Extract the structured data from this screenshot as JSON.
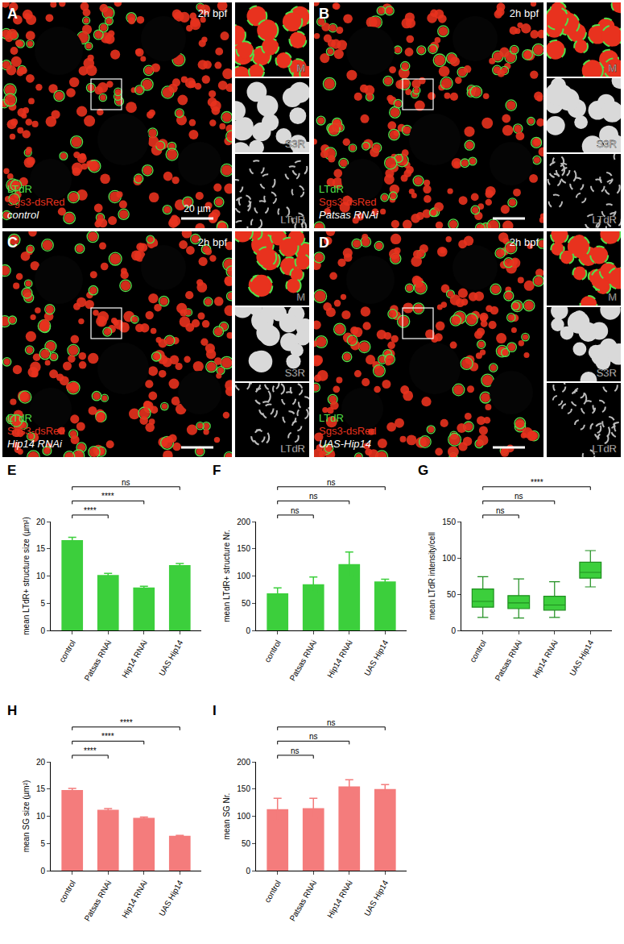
{
  "images": [
    {
      "panel": "A",
      "time": "2h bpf",
      "channels": [
        "LTdR",
        "Sgs3-dsRed"
      ],
      "genotype": "control",
      "insets": [
        "M",
        "S3R",
        "LTdR"
      ],
      "scale_bar": "20 µm"
    },
    {
      "panel": "B",
      "time": "2h bpf",
      "channels": [
        "LTdR",
        "Sgs3-dsRed"
      ],
      "genotype": "Patsas RNAi",
      "insets": [
        "M",
        "S3R",
        "LTdR"
      ]
    },
    {
      "panel": "C",
      "time": "2h bpf",
      "channels": [
        "LTdR",
        "Sgs3-dsRed"
      ],
      "genotype": "Hip14 RNAi",
      "insets": [
        "M",
        "S3R",
        "LTdR"
      ]
    },
    {
      "panel": "D",
      "time": "2h bpf",
      "channels": [
        "LTdR",
        "Sgs3-dsRed"
      ],
      "genotype": "UAS-Hip14",
      "insets": [
        "M",
        "S3R",
        "LTdR"
      ]
    }
  ],
  "chart_data": [
    {
      "panel_label": "E",
      "type": "bar",
      "y_label": "mean LTdR+ structure size (µm²)",
      "categories": [
        "control",
        "Patsas RNAi",
        "Hip14 RNAi",
        "UAS Hip14"
      ],
      "values": [
        16.6,
        10.2,
        7.9,
        12.0
      ],
      "errors": [
        0.5,
        0.3,
        0.2,
        0.3
      ],
      "color": "#3ccf3c",
      "ylim": [
        0,
        20
      ],
      "yticks": [
        0,
        5,
        10,
        15,
        20
      ],
      "comparisons": [
        {
          "from": "control",
          "to": "Patsas RNAi",
          "label": "****"
        },
        {
          "from": "control",
          "to": "Hip14 RNAi",
          "label": "****"
        },
        {
          "from": "control",
          "to": "UAS Hip14",
          "label": "ns"
        }
      ]
    },
    {
      "panel_label": "F",
      "type": "bar",
      "y_label": "mean LTdR+ structure Nr.",
      "categories": [
        "control",
        "Patsas RNAi",
        "Hip14 RNAi",
        "UAS Hip14"
      ],
      "values": [
        68,
        85,
        122,
        90
      ],
      "errors": [
        10,
        13,
        22,
        4
      ],
      "color": "#3ccf3c",
      "ylim": [
        0,
        200
      ],
      "yticks": [
        0,
        50,
        100,
        150,
        200
      ],
      "comparisons": [
        {
          "from": "control",
          "to": "Patsas RNAi",
          "label": "ns"
        },
        {
          "from": "control",
          "to": "Hip14 RNAi",
          "label": "ns"
        },
        {
          "from": "control",
          "to": "UAS Hip14",
          "label": "ns"
        }
      ]
    },
    {
      "panel_label": "G",
      "type": "box",
      "y_label": "mean LTdR intensity/cell",
      "categories": [
        "control",
        "Patsas RNAi",
        "Hip14 RNAi",
        "UAS Hip14"
      ],
      "boxes": [
        {
          "min": 18,
          "q1": 32,
          "median": 40,
          "q3": 57,
          "max": 74
        },
        {
          "min": 17,
          "q1": 30,
          "median": 38,
          "q3": 48,
          "max": 71
        },
        {
          "min": 18,
          "q1": 28,
          "median": 35,
          "q3": 47,
          "max": 67
        },
        {
          "min": 60,
          "q1": 72,
          "median": 80,
          "q3": 94,
          "max": 110
        }
      ],
      "color": "#3ccf3c",
      "ylim": [
        0,
        150
      ],
      "yticks": [
        0,
        50,
        100,
        150
      ],
      "comparisons": [
        {
          "from": "control",
          "to": "Patsas RNAi",
          "label": "ns"
        },
        {
          "from": "control",
          "to": "Hip14 RNAi",
          "label": "ns"
        },
        {
          "from": "control",
          "to": "UAS Hip14",
          "label": "****"
        }
      ]
    },
    {
      "panel_label": "H",
      "type": "bar",
      "y_label": "mean SG size (µm²)",
      "categories": [
        "control",
        "Patsas RNAi",
        "Hip14 RNAi",
        "UAS Hip14"
      ],
      "values": [
        14.8,
        11.2,
        9.7,
        6.4
      ],
      "errors": [
        0.3,
        0.2,
        0.15,
        0.1
      ],
      "color": "#f47c7c",
      "ylim": [
        0,
        20
      ],
      "yticks": [
        0,
        5,
        10,
        15,
        20
      ],
      "comparisons": [
        {
          "from": "control",
          "to": "Patsas RNAi",
          "label": "****"
        },
        {
          "from": "control",
          "to": "Hip14 RNAi",
          "label": "****"
        },
        {
          "from": "control",
          "to": "UAS Hip14",
          "label": "****"
        }
      ]
    },
    {
      "panel_label": "I",
      "type": "bar",
      "y_label": "mean SG Nr.",
      "categories": [
        "control",
        "Patsas RNAi",
        "Hip14 RNAi",
        "UAS Hip14"
      ],
      "values": [
        113,
        115,
        155,
        150
      ],
      "errors": [
        20,
        18,
        12,
        8
      ],
      "color": "#f47c7c",
      "ylim": [
        0,
        200
      ],
      "yticks": [
        0,
        50,
        100,
        150,
        200
      ],
      "comparisons": [
        {
          "from": "control",
          "to": "Patsas RNAi",
          "label": "ns"
        },
        {
          "from": "control",
          "to": "Hip14 RNAi",
          "label": "ns"
        },
        {
          "from": "control",
          "to": "UAS Hip14",
          "label": "ns"
        }
      ]
    }
  ]
}
